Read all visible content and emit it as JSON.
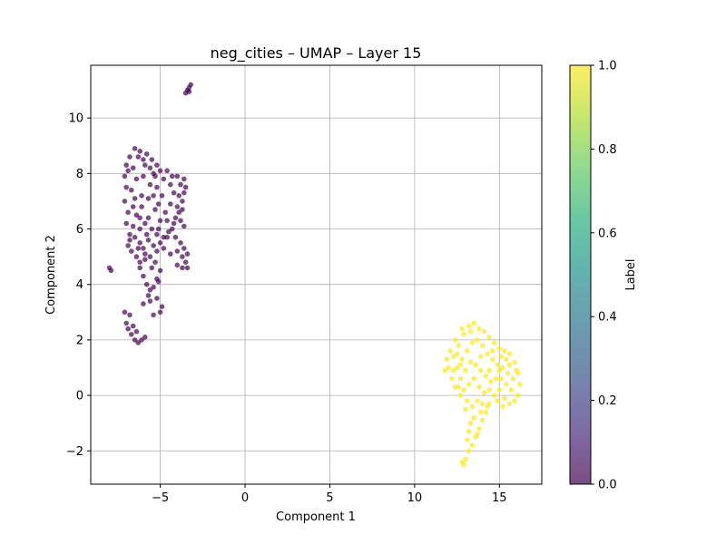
{
  "chart_data": {
    "type": "scatter",
    "title": "neg_cities – UMAP – Layer 15",
    "xlabel": "Component 1",
    "ylabel": "Component 2",
    "xlim": [
      -9.1,
      17.5
    ],
    "ylim": [
      -3.2,
      11.9
    ],
    "x_ticks": [
      -5,
      0,
      5,
      10,
      15
    ],
    "x_tick_labels": [
      "−5",
      "0",
      "5",
      "10",
      "15"
    ],
    "y_ticks": [
      -2,
      0,
      2,
      4,
      6,
      8,
      10
    ],
    "y_tick_labels": [
      "−2",
      "0",
      "2",
      "4",
      "6",
      "8",
      "10"
    ],
    "grid": true,
    "colorbar": {
      "label": "Label",
      "range": [
        0.0,
        1.0
      ],
      "ticks": [
        0.0,
        0.2,
        0.4,
        0.6,
        0.8,
        1.0
      ],
      "tick_labels": [
        "0.0",
        "0.2",
        "0.4",
        "0.6",
        "0.8",
        "1.0"
      ],
      "colormap": "viridis",
      "alpha": 0.7
    },
    "series": [
      {
        "label_value": 0,
        "color": "#440154",
        "points": [
          [
            -6.5,
            8.9
          ],
          [
            -6.2,
            8.8
          ],
          [
            -5.8,
            8.7
          ],
          [
            -5.5,
            8.5
          ],
          [
            -5.2,
            8.3
          ],
          [
            -5.0,
            8.1
          ],
          [
            -6.8,
            8.6
          ],
          [
            -7.0,
            8.3
          ],
          [
            -6.6,
            8.2
          ],
          [
            -6.0,
            8.5
          ],
          [
            -5.6,
            8.2
          ],
          [
            -5.3,
            7.9
          ],
          [
            -7.1,
            7.9
          ],
          [
            -7.0,
            7.5
          ],
          [
            -7.1,
            7.0
          ],
          [
            -6.9,
            6.6
          ],
          [
            -7.0,
            6.2
          ],
          [
            -6.8,
            5.8
          ],
          [
            -6.9,
            5.4
          ],
          [
            -6.7,
            5.2
          ],
          [
            -6.4,
            5.0
          ],
          [
            -6.0,
            5.3
          ],
          [
            -5.7,
            5.6
          ],
          [
            -5.4,
            5.4
          ],
          [
            -5.0,
            5.5
          ],
          [
            -4.6,
            5.7
          ],
          [
            -4.3,
            6.0
          ],
          [
            -4.1,
            6.4
          ],
          [
            -4.0,
            6.8
          ],
          [
            -3.9,
            7.2
          ],
          [
            -3.8,
            7.6
          ],
          [
            -3.6,
            7.8
          ],
          [
            -3.5,
            7.5
          ],
          [
            -3.7,
            7.0
          ],
          [
            -3.9,
            6.6
          ],
          [
            -4.2,
            6.2
          ],
          [
            -4.5,
            5.9
          ],
          [
            -4.8,
            5.7
          ],
          [
            -5.2,
            5.8
          ],
          [
            -5.5,
            6.0
          ],
          [
            -5.9,
            6.2
          ],
          [
            -6.2,
            6.0
          ],
          [
            -6.5,
            5.7
          ],
          [
            -6.3,
            5.3
          ],
          [
            -5.9,
            5.1
          ],
          [
            -5.6,
            5.0
          ],
          [
            -5.2,
            5.2
          ],
          [
            -4.8,
            5.3
          ],
          [
            -4.4,
            5.1
          ],
          [
            -4.0,
            5.2
          ],
          [
            -3.7,
            5.0
          ],
          [
            -3.5,
            4.8
          ],
          [
            -3.4,
            4.6
          ],
          [
            -3.7,
            4.6
          ],
          [
            -4.0,
            4.7
          ],
          [
            -3.4,
            5.1
          ],
          [
            -3.6,
            5.3
          ],
          [
            -6.6,
            6.8
          ],
          [
            -6.4,
            6.5
          ],
          [
            -6.1,
            6.8
          ],
          [
            -5.7,
            6.4
          ],
          [
            -5.3,
            6.7
          ],
          [
            -5.0,
            6.3
          ],
          [
            -4.7,
            6.6
          ],
          [
            -4.4,
            6.9
          ],
          [
            -4.2,
            7.3
          ],
          [
            -4.4,
            7.6
          ],
          [
            -4.8,
            7.8
          ],
          [
            -5.2,
            7.5
          ],
          [
            -5.6,
            7.6
          ],
          [
            -6.0,
            7.9
          ],
          [
            -6.4,
            7.8
          ],
          [
            -6.7,
            7.4
          ],
          [
            -6.5,
            7.1
          ],
          [
            -6.1,
            7.2
          ],
          [
            -5.7,
            7.1
          ],
          [
            -5.4,
            7.2
          ],
          [
            -8.0,
            4.6
          ],
          [
            -7.9,
            4.5
          ],
          [
            -6.2,
            4.6
          ],
          [
            -6.0,
            4.3
          ],
          [
            -5.8,
            4.0
          ],
          [
            -5.6,
            3.8
          ],
          [
            -5.4,
            3.9
          ],
          [
            -5.2,
            4.2
          ],
          [
            -5.0,
            4.5
          ],
          [
            -5.5,
            4.6
          ],
          [
            -6.0,
            3.3
          ],
          [
            -5.6,
            3.4
          ],
          [
            -5.2,
            3.5
          ],
          [
            -4.9,
            3.2
          ],
          [
            -5.0,
            3.0
          ],
          [
            -5.4,
            2.9
          ],
          [
            -7.0,
            2.6
          ],
          [
            -6.9,
            2.4
          ],
          [
            -6.7,
            2.2
          ],
          [
            -6.5,
            2.0
          ],
          [
            -6.3,
            1.9
          ],
          [
            -6.1,
            2.0
          ],
          [
            -5.9,
            2.1
          ],
          [
            -6.8,
            2.9
          ],
          [
            -7.1,
            3.0
          ],
          [
            -3.4,
            11.0
          ],
          [
            -3.3,
            11.1
          ],
          [
            -3.2,
            11.2
          ],
          [
            -3.5,
            10.9
          ],
          [
            -3.3,
            10.95
          ],
          [
            -6.9,
            8.1
          ],
          [
            -6.3,
            8.6
          ],
          [
            -5.9,
            8.3
          ],
          [
            -5.4,
            8.0
          ],
          [
            -4.6,
            8.1
          ],
          [
            -4.3,
            7.9
          ],
          [
            -4.9,
            7.2
          ],
          [
            -5.1,
            6.9
          ],
          [
            -6.2,
            6.4
          ],
          [
            -6.6,
            6.1
          ],
          [
            -6.8,
            5.6
          ],
          [
            -6.2,
            5.5
          ],
          [
            -5.8,
            5.8
          ],
          [
            -5.1,
            6.0
          ],
          [
            -4.6,
            6.3
          ],
          [
            -4.1,
            5.7
          ],
          [
            -3.8,
            5.5
          ],
          [
            -3.6,
            6.1
          ],
          [
            -3.8,
            6.3
          ],
          [
            -4.0,
            7.9
          ],
          [
            -3.6,
            7.3
          ],
          [
            -3.7,
            6.7
          ],
          [
            -5.9,
            4.9
          ],
          [
            -6.2,
            4.8
          ],
          [
            -5.3,
            4.8
          ],
          [
            -5.1,
            4.1
          ],
          [
            -5.7,
            3.6
          ],
          [
            -6.6,
            2.5
          ],
          [
            -6.4,
            2.3
          ]
        ]
      },
      {
        "label_value": 1,
        "color": "#fde725",
        "points": [
          [
            12.0,
            1.0
          ],
          [
            12.3,
            1.4
          ],
          [
            12.6,
            1.8
          ],
          [
            12.9,
            2.2
          ],
          [
            13.2,
            2.5
          ],
          [
            13.5,
            2.6
          ],
          [
            13.8,
            2.4
          ],
          [
            14.1,
            2.3
          ],
          [
            14.4,
            2.1
          ],
          [
            14.7,
            1.9
          ],
          [
            15.0,
            1.7
          ],
          [
            15.3,
            1.6
          ],
          [
            15.6,
            1.5
          ],
          [
            15.9,
            1.2
          ],
          [
            16.1,
            0.8
          ],
          [
            16.2,
            0.4
          ],
          [
            16.1,
            0.0
          ],
          [
            15.9,
            -0.2
          ],
          [
            15.6,
            -0.3
          ],
          [
            15.3,
            -0.1
          ],
          [
            15.0,
            0.2
          ],
          [
            14.7,
            0.0
          ],
          [
            14.4,
            -0.3
          ],
          [
            14.2,
            -0.6
          ],
          [
            14.0,
            -0.9
          ],
          [
            13.8,
            -1.2
          ],
          [
            13.6,
            -1.5
          ],
          [
            13.4,
            -1.8
          ],
          [
            13.2,
            -2.0
          ],
          [
            13.0,
            -2.3
          ],
          [
            12.9,
            -2.5
          ],
          [
            12.8,
            -2.4
          ],
          [
            13.1,
            -1.6
          ],
          [
            13.3,
            -1.0
          ],
          [
            13.0,
            -0.5
          ],
          [
            12.7,
            0.0
          ],
          [
            12.4,
            0.3
          ],
          [
            12.2,
            0.6
          ],
          [
            11.8,
            0.9
          ],
          [
            11.9,
            1.3
          ],
          [
            12.5,
            1.0
          ],
          [
            12.8,
            1.3
          ],
          [
            13.1,
            1.6
          ],
          [
            13.4,
            1.9
          ],
          [
            13.7,
            2.0
          ],
          [
            14.0,
            1.8
          ],
          [
            14.3,
            1.5
          ],
          [
            14.6,
            1.3
          ],
          [
            14.9,
            1.1
          ],
          [
            15.2,
            1.0
          ],
          [
            15.5,
            0.8
          ],
          [
            15.8,
            0.6
          ],
          [
            15.7,
            0.2
          ],
          [
            15.4,
            0.4
          ],
          [
            15.1,
            0.6
          ],
          [
            14.8,
            0.6
          ],
          [
            14.5,
            0.5
          ],
          [
            14.2,
            0.7
          ],
          [
            13.9,
            0.9
          ],
          [
            13.6,
            1.1
          ],
          [
            13.3,
            1.2
          ],
          [
            13.0,
            0.9
          ],
          [
            12.7,
            0.6
          ],
          [
            12.9,
            0.2
          ],
          [
            13.2,
            0.4
          ],
          [
            13.5,
            0.6
          ],
          [
            13.8,
            0.3
          ],
          [
            14.1,
            0.1
          ],
          [
            14.4,
            0.2
          ],
          [
            13.7,
            -0.2
          ],
          [
            13.4,
            -0.4
          ],
          [
            13.1,
            -0.2
          ],
          [
            12.6,
            0.3
          ],
          [
            12.3,
            0.9
          ],
          [
            12.1,
            1.6
          ],
          [
            12.4,
            2.0
          ],
          [
            12.8,
            2.4
          ],
          [
            13.3,
            2.3
          ],
          [
            14.6,
            1.6
          ],
          [
            15.1,
            1.4
          ],
          [
            15.6,
            1.1
          ],
          [
            16.0,
            0.9
          ],
          [
            15.2,
            -0.4
          ],
          [
            14.9,
            -0.2
          ],
          [
            14.3,
            -0.4
          ],
          [
            13.9,
            -0.6
          ],
          [
            13.5,
            -0.8
          ],
          [
            13.2,
            -1.3
          ],
          [
            13.7,
            -1.4
          ],
          [
            14.0,
            -0.3
          ],
          [
            12.5,
            1.5
          ],
          [
            12.7,
            1.1
          ],
          [
            13.9,
            1.4
          ],
          [
            14.4,
            0.9
          ],
          [
            15.0,
            0.9
          ],
          [
            15.4,
            1.3
          ]
        ]
      }
    ]
  }
}
